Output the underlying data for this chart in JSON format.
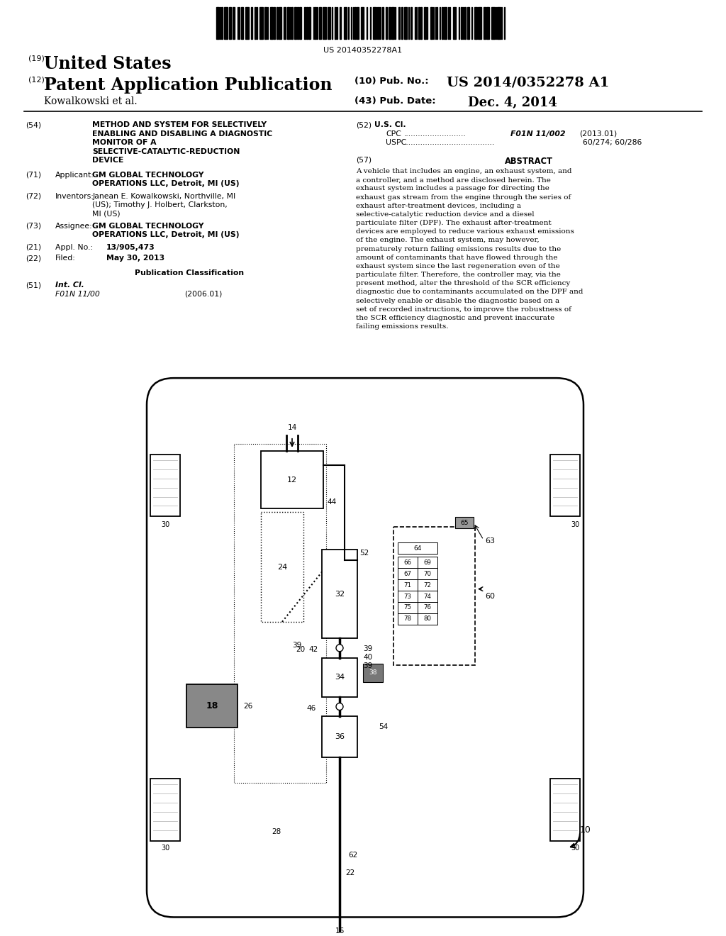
{
  "background_color": "#ffffff",
  "barcode_text": "US 20140352278A1",
  "header": {
    "country_prefix": "(19)",
    "country": "United States",
    "type_prefix": "(12)",
    "type": "Patent Application Publication",
    "pub_no_prefix": "(10) Pub. No.:",
    "pub_no": "US 2014/0352278 A1",
    "authors": "Kowalkowski et al.",
    "date_prefix": "(43) Pub. Date:",
    "date": "Dec. 4, 2014"
  },
  "left_col": {
    "title_num": "(54)",
    "title_lines": [
      "METHOD AND SYSTEM FOR SELECTIVELY",
      "ENABLING AND DISABLING A DIAGNOSTIC",
      "MONITOR OF A",
      "SELECTIVE-CATALYTIC-REDUCTION",
      "DEVICE"
    ],
    "applicant_num": "(71)",
    "applicant_label": "Applicant:",
    "applicant_lines": [
      "GM GLOBAL TECHNOLOGY",
      "OPERATIONS LLC, Detroit, MI (US)"
    ],
    "inventors_num": "(72)",
    "inventors_label": "Inventors:",
    "inventors_lines": [
      "Janean E. Kowalkowski, Northville, MI",
      "(US); Timothy J. Holbert, Clarkston,",
      "MI (US)"
    ],
    "assignee_num": "(73)",
    "assignee_label": "Assignee:",
    "assignee_lines": [
      "GM GLOBAL TECHNOLOGY",
      "OPERATIONS LLC, Detroit, MI (US)"
    ],
    "appl_num": "(21)",
    "appl_label": "Appl. No.:",
    "appl_no": "13/905,473",
    "filed_num": "(22)",
    "filed_label": "Filed:",
    "filed_date": "May 30, 2013",
    "pub_class_header": "Publication Classification",
    "intcl_num": "(51)",
    "intcl_label": "Int. Cl.",
    "intcl_class": "F01N 11/00",
    "intcl_year": "(2006.01)"
  },
  "right_col": {
    "uscl_num": "(52)",
    "uscl_label": "U.S. Cl.",
    "cpc_label": "CPC",
    "cpc_class": "F01N 11/002",
    "cpc_year": "(2013.01)",
    "uspc_label": "USPC",
    "uspc_class": "60/274; 60/286",
    "abstract_num": "(57)",
    "abstract_title": "ABSTRACT",
    "abstract_text": "A vehicle that includes an engine, an exhaust system, and a controller, and a method are disclosed herein. The exhaust system includes a passage for directing the exhaust gas stream from the engine through the series of exhaust after-treatment devices, including a selective-catalytic reduction device and a diesel particulate filter (DPF). The exhaust after-treatment devices are employed to reduce various exhaust emissions of the engine. The exhaust system, may however, prematurely return failing emissions results due to the amount of contaminants that have flowed through the exhaust system since the last regeneration even of the particulate filter. Therefore, the controller may, via the present method, alter the threshold of the SCR efficiency diagnostic due to contaminants accumulated on the DPF and selectively enable or disable the diagnostic based on a set of recorded instructions, to improve the robustness of the SCR efficiency diagnostic and prevent inaccurate failing emissions results."
  }
}
